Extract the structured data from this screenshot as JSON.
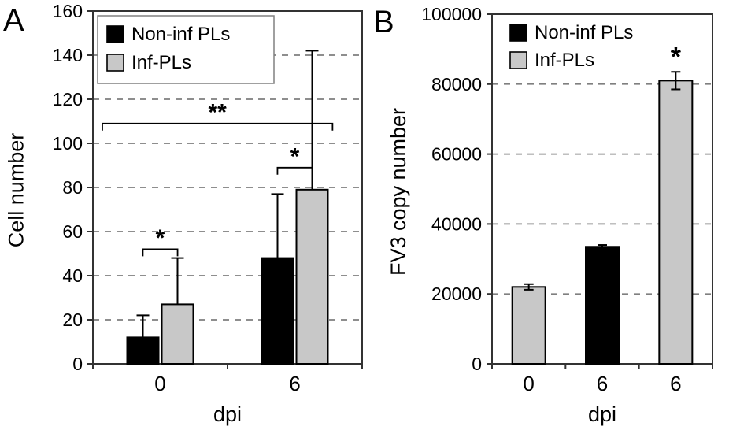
{
  "figure": {
    "background": "#ffffff"
  },
  "colors": {
    "non_inf": "#000000",
    "inf": "#c8c8c8",
    "grid": "#7f7f7f",
    "axis": "#333333"
  },
  "chart_data": [
    {
      "type": "bar",
      "panel": "A",
      "xlabel": "dpi",
      "ylabel": "Cell number",
      "ylim": [
        0,
        160
      ],
      "ytick_step": 20,
      "yticks": [
        0,
        20,
        40,
        60,
        80,
        100,
        120,
        140,
        160
      ],
      "categories": [
        "0",
        "6"
      ],
      "grid": "dashed-horizontal",
      "series": [
        {
          "name": "Non-inf PLs",
          "color": "#000000",
          "values": [
            12,
            48
          ],
          "errors_up": [
            10,
            29
          ]
        },
        {
          "name": "Inf-PLs",
          "color": "#c8c8c8",
          "values": [
            27,
            79
          ],
          "errors_up": [
            21,
            63
          ]
        }
      ],
      "legend": {
        "position": "top-left",
        "border": true,
        "items": [
          {
            "label": "Non-inf PLs",
            "color": "#000000"
          },
          {
            "label": "Inf-PLs",
            "color": "#c8c8c8"
          }
        ]
      },
      "annotations": [
        {
          "type": "bracket",
          "label": "*",
          "x1": 0.371,
          "x2": 0.629,
          "y": 52,
          "label_y": 53.5
        },
        {
          "type": "bracket",
          "label": "*",
          "x1": 1.371,
          "x2": 1.629,
          "y": 89,
          "label_y": 90.5
        },
        {
          "type": "bracket",
          "label": "**",
          "x1": 0.07,
          "x2": 1.78,
          "y": 109,
          "label_y": 110.5
        }
      ]
    },
    {
      "type": "bar",
      "panel": "B",
      "xlabel": "dpi",
      "ylabel": "FV3 copy number",
      "ylim": [
        0,
        100000
      ],
      "ytick_step": 20000,
      "yticks": [
        0,
        20000,
        40000,
        60000,
        80000,
        100000
      ],
      "categories": [
        "0",
        "6",
        "6"
      ],
      "grid": "dashed-horizontal",
      "bars": [
        {
          "x": "0",
          "series": "Inf-PLs",
          "color": "#c8c8c8",
          "value": 22000,
          "error_up": 800,
          "error_down": 800
        },
        {
          "x": "6",
          "series": "Non-inf PLs",
          "color": "#000000",
          "value": 33500,
          "error_up": 500,
          "error_down": 500
        },
        {
          "x": "6",
          "series": "Inf-PLs",
          "color": "#c8c8c8",
          "value": 81000,
          "error_up": 2500,
          "error_down": 2500,
          "star": "*"
        }
      ],
      "legend": {
        "position": "top-left",
        "border": false,
        "items": [
          {
            "label": "Non-inf PLs",
            "color": "#000000"
          },
          {
            "label": "Inf-PLs",
            "color": "#c8c8c8"
          }
        ]
      }
    }
  ]
}
